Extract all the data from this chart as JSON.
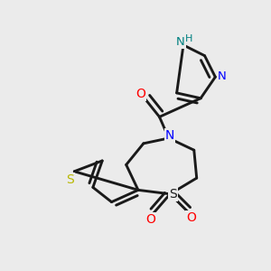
{
  "background_color": "#ebebeb",
  "bond_color": "#1a1a1a",
  "atom_colors": {
    "N": "#0000ff",
    "O": "#ff0000",
    "S_yellow": "#b8b800",
    "H": "#008080",
    "C": "#1a1a1a"
  },
  "figsize": [
    3.0,
    3.0
  ],
  "dpi": 100
}
